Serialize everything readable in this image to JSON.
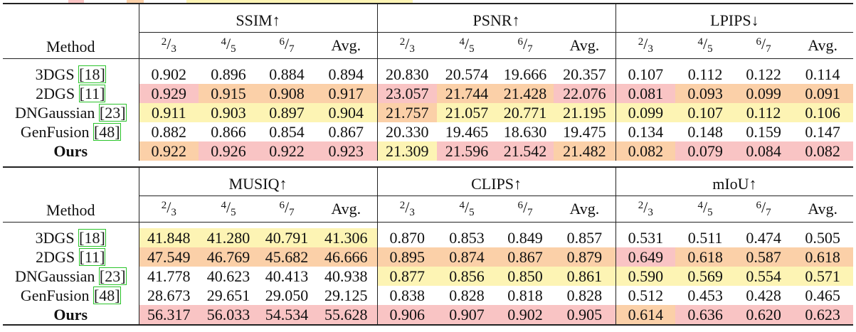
{
  "colors": {
    "first": "#f9c4c4",
    "second": "#fbd0a8",
    "third": "#fdf4b4"
  },
  "method_header": "Method",
  "subcols": [
    {
      "num": "2",
      "den": "3"
    },
    {
      "num": "4",
      "den": "5"
    },
    {
      "num": "6",
      "den": "7"
    }
  ],
  "avg_label": "Avg.",
  "blocks": [
    {
      "metrics": [
        "SSIM↑",
        "PSNR↑",
        "LPIPS↓"
      ],
      "rows": [
        {
          "name": "3DGS",
          "ref": "18",
          "bold": false,
          "cells": [
            [
              "0.902",
              ""
            ],
            [
              "0.896",
              ""
            ],
            [
              "0.884",
              ""
            ],
            [
              "0.894",
              ""
            ],
            [
              "20.830",
              ""
            ],
            [
              "20.574",
              ""
            ],
            [
              "19.666",
              ""
            ],
            [
              "20.357",
              ""
            ],
            [
              "0.107",
              ""
            ],
            [
              "0.112",
              ""
            ],
            [
              "0.122",
              ""
            ],
            [
              "0.114",
              ""
            ]
          ]
        },
        {
          "name": "2DGS",
          "ref": "11",
          "bold": false,
          "cells": [
            [
              "0.929",
              "c1"
            ],
            [
              "0.915",
              "c2"
            ],
            [
              "0.908",
              "c2"
            ],
            [
              "0.917",
              "c2"
            ],
            [
              "23.057",
              "c1"
            ],
            [
              "21.744",
              "c2"
            ],
            [
              "21.428",
              "c2"
            ],
            [
              "22.076",
              "c1"
            ],
            [
              "0.081",
              "c1"
            ],
            [
              "0.093",
              "c2"
            ],
            [
              "0.099",
              "c2"
            ],
            [
              "0.091",
              "c2"
            ]
          ]
        },
        {
          "name": "DNGaussian",
          "ref": "23",
          "bold": false,
          "cells": [
            [
              "0.911",
              "c3"
            ],
            [
              "0.903",
              "c3"
            ],
            [
              "0.897",
              "c3"
            ],
            [
              "0.904",
              "c3"
            ],
            [
              "21.757",
              "c2"
            ],
            [
              "21.057",
              "c3"
            ],
            [
              "20.771",
              "c3"
            ],
            [
              "21.195",
              "c3"
            ],
            [
              "0.099",
              "c3"
            ],
            [
              "0.107",
              "c3"
            ],
            [
              "0.112",
              "c3"
            ],
            [
              "0.106",
              "c3"
            ]
          ]
        },
        {
          "name": "GenFusion",
          "ref": "48",
          "bold": false,
          "cells": [
            [
              "0.882",
              ""
            ],
            [
              "0.866",
              ""
            ],
            [
              "0.854",
              ""
            ],
            [
              "0.867",
              ""
            ],
            [
              "20.330",
              ""
            ],
            [
              "19.465",
              ""
            ],
            [
              "18.630",
              ""
            ],
            [
              "19.475",
              ""
            ],
            [
              "0.134",
              ""
            ],
            [
              "0.148",
              ""
            ],
            [
              "0.159",
              ""
            ],
            [
              "0.147",
              ""
            ]
          ]
        },
        {
          "name": "Ours",
          "ref": "",
          "bold": true,
          "cells": [
            [
              "0.922",
              "c2"
            ],
            [
              "0.926",
              "c1"
            ],
            [
              "0.922",
              "c1"
            ],
            [
              "0.923",
              "c1"
            ],
            [
              "21.309",
              "c3"
            ],
            [
              "21.596",
              "c1"
            ],
            [
              "21.542",
              "c1"
            ],
            [
              "21.482",
              "c2"
            ],
            [
              "0.082",
              "c2"
            ],
            [
              "0.079",
              "c1"
            ],
            [
              "0.084",
              "c1"
            ],
            [
              "0.082",
              "c1"
            ]
          ]
        }
      ]
    },
    {
      "metrics": [
        "MUSIQ↑",
        "CLIPS↑",
        "mIoU↑"
      ],
      "rows": [
        {
          "name": "3DGS",
          "ref": "18",
          "bold": false,
          "cells": [
            [
              "41.848",
              "c3"
            ],
            [
              "41.280",
              "c3"
            ],
            [
              "40.791",
              "c3"
            ],
            [
              "41.306",
              "c3"
            ],
            [
              "0.870",
              ""
            ],
            [
              "0.853",
              ""
            ],
            [
              "0.849",
              ""
            ],
            [
              "0.857",
              ""
            ],
            [
              "0.531",
              ""
            ],
            [
              "0.511",
              ""
            ],
            [
              "0.474",
              ""
            ],
            [
              "0.505",
              ""
            ]
          ]
        },
        {
          "name": "2DGS",
          "ref": "11",
          "bold": false,
          "cells": [
            [
              "47.549",
              "c2"
            ],
            [
              "46.769",
              "c2"
            ],
            [
              "45.682",
              "c2"
            ],
            [
              "46.666",
              "c2"
            ],
            [
              "0.895",
              "c2"
            ],
            [
              "0.874",
              "c2"
            ],
            [
              "0.867",
              "c2"
            ],
            [
              "0.879",
              "c2"
            ],
            [
              "0.649",
              "c1"
            ],
            [
              "0.618",
              "c2"
            ],
            [
              "0.587",
              "c2"
            ],
            [
              "0.618",
              "c2"
            ]
          ]
        },
        {
          "name": "DNGaussian",
          "ref": "23",
          "bold": false,
          "cells": [
            [
              "41.778",
              ""
            ],
            [
              "40.623",
              ""
            ],
            [
              "40.413",
              ""
            ],
            [
              "40.938",
              ""
            ],
            [
              "0.877",
              "c3"
            ],
            [
              "0.856",
              "c3"
            ],
            [
              "0.850",
              "c3"
            ],
            [
              "0.861",
              "c3"
            ],
            [
              "0.590",
              "c3"
            ],
            [
              "0.569",
              "c3"
            ],
            [
              "0.554",
              "c3"
            ],
            [
              "0.571",
              "c3"
            ]
          ]
        },
        {
          "name": "GenFusion",
          "ref": "48",
          "bold": false,
          "cells": [
            [
              "28.673",
              ""
            ],
            [
              "29.651",
              ""
            ],
            [
              "29.050",
              ""
            ],
            [
              "29.125",
              ""
            ],
            [
              "0.838",
              ""
            ],
            [
              "0.828",
              ""
            ],
            [
              "0.818",
              ""
            ],
            [
              "0.828",
              ""
            ],
            [
              "0.512",
              ""
            ],
            [
              "0.453",
              ""
            ],
            [
              "0.428",
              ""
            ],
            [
              "0.465",
              ""
            ]
          ]
        },
        {
          "name": "Ours",
          "ref": "",
          "bold": true,
          "cells": [
            [
              "56.317",
              "c1"
            ],
            [
              "56.033",
              "c1"
            ],
            [
              "54.534",
              "c1"
            ],
            [
              "55.628",
              "c1"
            ],
            [
              "0.906",
              "c1"
            ],
            [
              "0.907",
              "c1"
            ],
            [
              "0.902",
              "c1"
            ],
            [
              "0.905",
              "c1"
            ],
            [
              "0.614",
              "c2"
            ],
            [
              "0.636",
              "c1"
            ],
            [
              "0.620",
              "c1"
            ],
            [
              "0.623",
              "c1"
            ]
          ]
        }
      ]
    }
  ]
}
